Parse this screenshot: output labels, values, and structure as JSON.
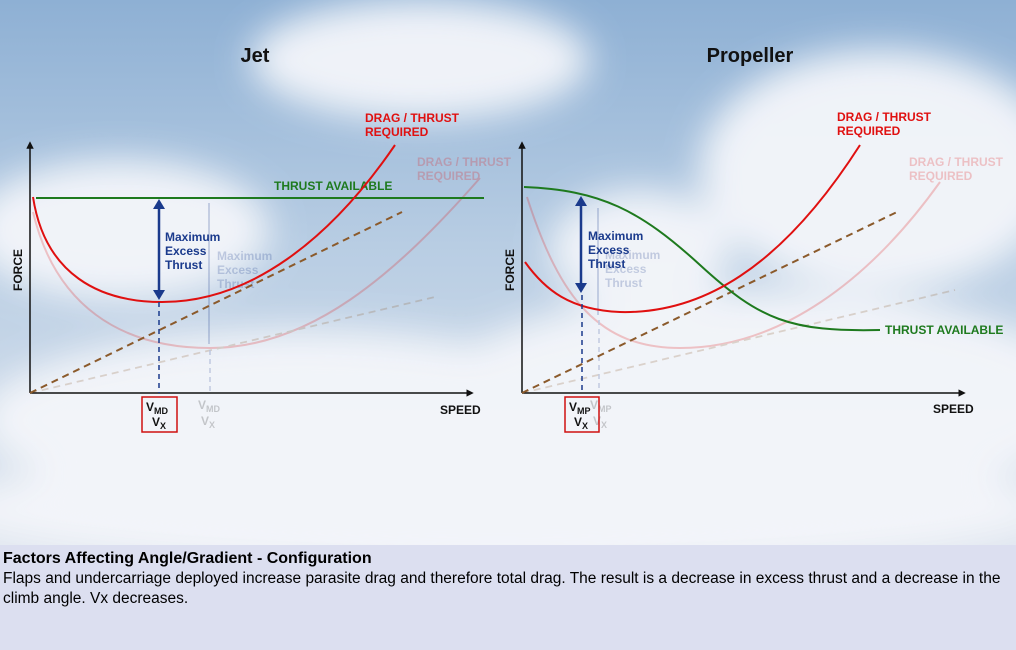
{
  "colors": {
    "drag": "#e01010",
    "thrust": "#1e7a1e",
    "arrow": "#1a3a8c",
    "parasite": "#8b5a2b",
    "axis": "#111111"
  },
  "jet": {
    "title": "Jet",
    "drag_label": [
      "DRAG / THRUST",
      "REQUIRED"
    ],
    "thrust_label": "THRUST AVAILABLE",
    "excess_label": [
      "Maximum",
      "Excess",
      "Thrust"
    ],
    "y_axis": "FORCE",
    "x_axis": "SPEED",
    "speed_marker": [
      "MD",
      "X"
    ]
  },
  "prop": {
    "title": "Propeller",
    "drag_label": [
      "DRAG / THRUST",
      "REQUIRED"
    ],
    "thrust_label": "THRUST AVAILABLE",
    "excess_label": [
      "Maximum",
      "Excess",
      "Thrust"
    ],
    "y_axis": "FORCE",
    "x_axis": "SPEED",
    "speed_marker": [
      "MP",
      "X"
    ]
  },
  "caption": {
    "title": "Factors Affecting Angle/Gradient - Configuration",
    "body": "Flaps and undercarriage deployed increase parasite drag and therefore total drag. The result is a decrease in excess thrust and a decrease in the climb angle. Vx decreases."
  }
}
